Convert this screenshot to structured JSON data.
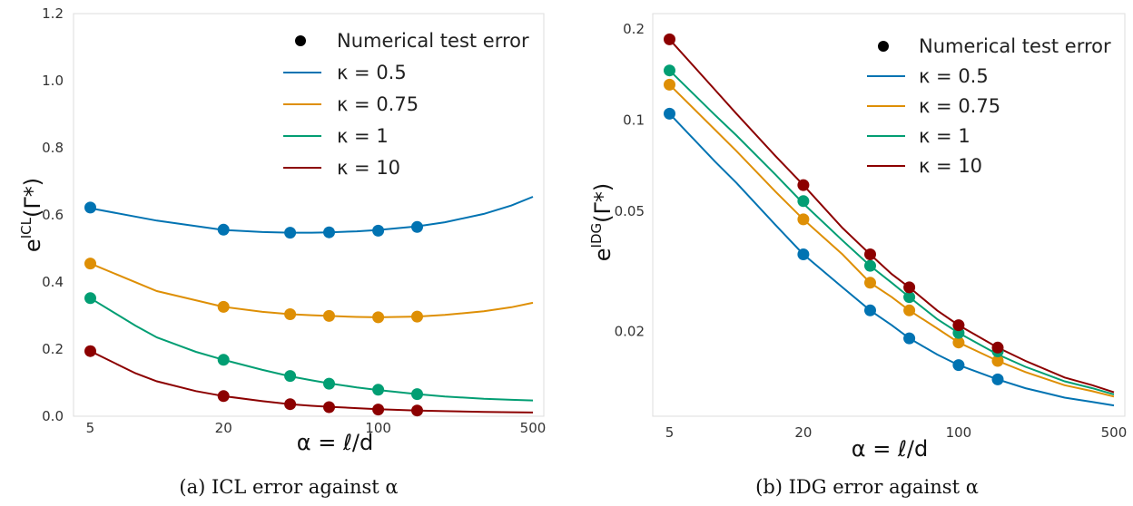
{
  "chart_data": [
    {
      "type": "line",
      "caption": "(a) ICL error against α",
      "xlabel": "α = ℓ/d",
      "ylabel_main": "e",
      "ylabel_sup": "ICL",
      "ylabel_rest": "(Γ*)",
      "x_scale": "log",
      "xlim": [
        4.2,
        560
      ],
      "ylim": [
        0.0,
        1.2
      ],
      "xticks": [
        5,
        20,
        100,
        500
      ],
      "xtick_labels": [
        "5",
        "20",
        "100",
        "500"
      ],
      "yticks": [
        0.0,
        0.2,
        0.4,
        0.6,
        0.8,
        1.0,
        1.2
      ],
      "ytick_labels": [
        "0.0",
        "0.2",
        "0.4",
        "0.6",
        "0.8",
        "1.0",
        "1.2"
      ],
      "grid": false,
      "legend": {
        "position": "top-right",
        "marker_entry": "Numerical test error",
        "entries": [
          "κ = 0.5",
          "κ = 0.75",
          "κ = 1",
          "κ = 10"
        ]
      },
      "series": [
        {
          "name": "κ = 0.5",
          "color": "#0173b2",
          "curve_x": [
            5,
            10,
            20,
            30,
            40,
            50,
            60,
            80,
            100,
            150,
            200,
            300,
            400,
            500
          ],
          "curve_y": [
            0.62,
            0.583,
            0.555,
            0.549,
            0.547,
            0.547,
            0.548,
            0.551,
            0.555,
            0.566,
            0.578,
            0.603,
            0.628,
            0.654
          ],
          "points_x": [
            5,
            20,
            40,
            60,
            100,
            150
          ],
          "points_y": [
            0.622,
            0.556,
            0.547,
            0.548,
            0.553,
            0.564
          ]
        },
        {
          "name": "κ = 0.75",
          "color": "#de8f05",
          "curve_x": [
            5,
            10,
            20,
            30,
            40,
            50,
            60,
            80,
            100,
            150,
            200,
            300,
            400,
            500
          ],
          "curve_y": [
            0.455,
            0.373,
            0.326,
            0.311,
            0.304,
            0.301,
            0.299,
            0.296,
            0.295,
            0.297,
            0.302,
            0.313,
            0.325,
            0.338
          ],
          "points_x": [
            5,
            20,
            40,
            60,
            100,
            150
          ],
          "points_y": [
            0.455,
            0.326,
            0.304,
            0.299,
            0.295,
            0.297
          ]
        },
        {
          "name": "κ = 1",
          "color": "#029e73",
          "curve_x": [
            5,
            8,
            10,
            15,
            20,
            30,
            40,
            50,
            60,
            80,
            100,
            150,
            200,
            300,
            400,
            500
          ],
          "curve_y": [
            0.352,
            0.27,
            0.235,
            0.192,
            0.168,
            0.138,
            0.119,
            0.107,
            0.098,
            0.086,
            0.078,
            0.066,
            0.059,
            0.052,
            0.049,
            0.047
          ],
          "points_x": [
            5,
            20,
            40,
            60,
            100,
            150
          ],
          "points_y": [
            0.352,
            0.168,
            0.12,
            0.097,
            0.079,
            0.066
          ]
        },
        {
          "name": "κ = 10",
          "color": "#8c0000",
          "curve_x": [
            5,
            8,
            10,
            15,
            20,
            30,
            40,
            50,
            60,
            80,
            100,
            150,
            200,
            300,
            400,
            500
          ],
          "curve_y": [
            0.194,
            0.128,
            0.104,
            0.075,
            0.06,
            0.045,
            0.036,
            0.031,
            0.028,
            0.024,
            0.021,
            0.017,
            0.015,
            0.013,
            0.012,
            0.011
          ],
          "points_x": [
            5,
            20,
            40,
            60,
            100,
            150
          ],
          "points_y": [
            0.194,
            0.06,
            0.036,
            0.027,
            0.02,
            0.017
          ]
        }
      ]
    },
    {
      "type": "line",
      "caption": "(b) IDG error against α",
      "xlabel": "α = ℓ/d",
      "ylabel_main": "e",
      "ylabel_sup": "IDG",
      "ylabel_rest": "(Γ*)",
      "x_scale": "log",
      "y_scale": "log",
      "xlim": [
        4.2,
        560
      ],
      "ylim": [
        0.0105,
        0.225
      ],
      "xticks": [
        5,
        20,
        100,
        500
      ],
      "xtick_labels": [
        "5",
        "20",
        "100",
        "500"
      ],
      "yticks": [
        0.02,
        0.05,
        0.1,
        0.2
      ],
      "ytick_labels": [
        "0.02",
        "0.05",
        "0.1",
        "0.2"
      ],
      "grid": false,
      "legend": {
        "position": "top-right",
        "marker_entry": "Numerical test error",
        "entries": [
          "κ = 0.5",
          "κ = 0.75",
          "κ = 1",
          "κ = 10"
        ]
      },
      "series": [
        {
          "name": "κ = 0.5",
          "color": "#0173b2",
          "curve_x": [
            5,
            8,
            10,
            15,
            20,
            30,
            40,
            50,
            60,
            80,
            100,
            150,
            200,
            300,
            400,
            500
          ],
          "curve_y": [
            0.105,
            0.073,
            0.062,
            0.045,
            0.036,
            0.028,
            0.0235,
            0.021,
            0.019,
            0.0168,
            0.0155,
            0.0139,
            0.013,
            0.0121,
            0.0117,
            0.0114
          ],
          "points_x": [
            5,
            20,
            40,
            60,
            100,
            150
          ],
          "points_y": [
            0.105,
            0.036,
            0.0235,
            0.019,
            0.0155,
            0.0139
          ]
        },
        {
          "name": "κ = 0.75",
          "color": "#de8f05",
          "curve_x": [
            5,
            8,
            10,
            15,
            20,
            30,
            40,
            50,
            60,
            80,
            100,
            150,
            200,
            300,
            400,
            500
          ],
          "curve_y": [
            0.131,
            0.093,
            0.079,
            0.058,
            0.047,
            0.036,
            0.029,
            0.026,
            0.0235,
            0.0205,
            0.0184,
            0.016,
            0.0147,
            0.0133,
            0.0127,
            0.0122
          ],
          "points_x": [
            5,
            20,
            40,
            60,
            100,
            150
          ],
          "points_y": [
            0.131,
            0.047,
            0.029,
            0.0235,
            0.0184,
            0.016
          ]
        },
        {
          "name": "κ = 1",
          "color": "#029e73",
          "curve_x": [
            5,
            8,
            10,
            15,
            20,
            30,
            40,
            50,
            60,
            80,
            100,
            150,
            200,
            300,
            400,
            500
          ],
          "curve_y": [
            0.146,
            0.104,
            0.089,
            0.066,
            0.053,
            0.04,
            0.033,
            0.029,
            0.026,
            0.022,
            0.0198,
            0.0168,
            0.0153,
            0.0137,
            0.013,
            0.0124
          ],
          "points_x": [
            5,
            20,
            40,
            60,
            100,
            150
          ],
          "points_y": [
            0.146,
            0.054,
            0.033,
            0.026,
            0.0198,
            0.0172
          ]
        },
        {
          "name": "κ = 10",
          "color": "#8c0000",
          "curve_x": [
            5,
            8,
            10,
            15,
            20,
            30,
            40,
            50,
            60,
            80,
            100,
            150,
            200,
            300,
            400,
            500
          ],
          "curve_y": [
            0.185,
            0.126,
            0.105,
            0.076,
            0.061,
            0.044,
            0.036,
            0.031,
            0.028,
            0.0235,
            0.021,
            0.0177,
            0.016,
            0.0141,
            0.0133,
            0.0126
          ],
          "points_x": [
            5,
            20,
            40,
            60,
            100,
            150
          ],
          "points_y": [
            0.185,
            0.061,
            0.036,
            0.028,
            0.021,
            0.0177
          ]
        }
      ]
    }
  ]
}
